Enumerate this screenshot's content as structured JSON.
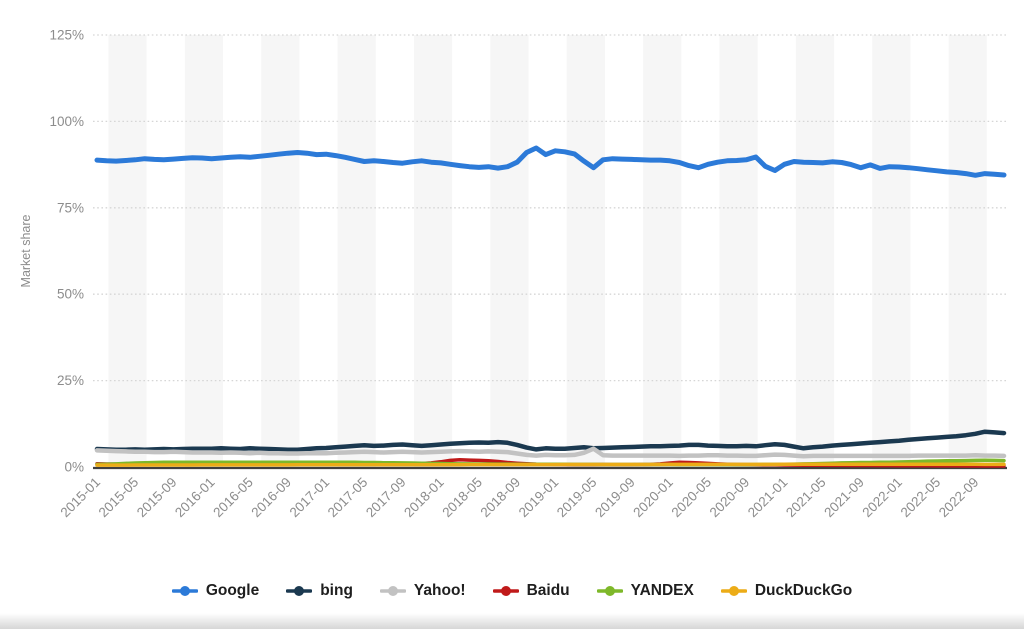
{
  "axis_text_color": "#8c8c8c",
  "legend_text_color": "#1e1e1e",
  "plot_stripe_color": "#f6f6f6",
  "gridline_color": "#d6d6d6",
  "baseline_color": "#3f3f3f",
  "chart_data": {
    "type": "line",
    "title": "",
    "xlabel": "",
    "ylabel": "Market share",
    "ylim": [
      0,
      125
    ],
    "grid": "horizontal dotted",
    "plot_bands": "alternating vertical 4-month stripes",
    "legend_position": "bottom",
    "x_interval": "monthly",
    "x_start": "2015-01",
    "x_end": "2022-12",
    "x_tick_every": 4,
    "y_ticks": {
      "values": [
        0,
        25,
        50,
        75,
        100,
        125
      ],
      "labels": [
        "0%",
        "25%",
        "50%",
        "75%",
        "100%",
        "125%"
      ]
    },
    "x_tick_labels": [
      "2015-01",
      "2015-05",
      "2015-09",
      "2016-01",
      "2016-05",
      "2016-09",
      "2017-01",
      "2017-05",
      "2017-09",
      "2018-01",
      "2018-05",
      "2018-09",
      "2019-01",
      "2019-05",
      "2019-09",
      "2020-01",
      "2020-05",
      "2020-09",
      "2021-01",
      "2021-05",
      "2021-09",
      "2022-01",
      "2022-05",
      "2022-09"
    ],
    "series": [
      {
        "name": "Google",
        "color": "#2c7ad8",
        "width": 5,
        "values": [
          88.8,
          88.6,
          88.5,
          88.7,
          88.9,
          89.2,
          89.0,
          88.9,
          89.1,
          89.3,
          89.5,
          89.4,
          89.2,
          89.4,
          89.6,
          89.8,
          89.6,
          89.9,
          90.2,
          90.5,
          90.8,
          91.0,
          90.8,
          90.4,
          90.5,
          90.1,
          89.6,
          89.0,
          88.4,
          88.6,
          88.4,
          88.1,
          87.9,
          88.3,
          88.6,
          88.2,
          88.0,
          87.6,
          87.2,
          86.9,
          86.7,
          86.9,
          86.5,
          86.9,
          88.2,
          91.0,
          92.3,
          90.4,
          91.5,
          91.2,
          90.6,
          88.5,
          86.6,
          88.9,
          89.2,
          89.1,
          89.0,
          88.9,
          88.8,
          88.8,
          88.6,
          88.1,
          87.2,
          86.6,
          87.6,
          88.2,
          88.6,
          88.7,
          88.9,
          89.7,
          87.0,
          85.8,
          87.6,
          88.4,
          88.2,
          88.1,
          88.0,
          88.3,
          88.1,
          87.5,
          86.6,
          87.4,
          86.4,
          86.9,
          86.8,
          86.6,
          86.3,
          86.0,
          85.7,
          85.4,
          85.2,
          84.9,
          84.4,
          84.9,
          84.7,
          84.5
        ]
      },
      {
        "name": "bing",
        "color": "#1b3950",
        "width": 4.5,
        "values": [
          5.2,
          5.1,
          5.0,
          5.0,
          5.1,
          5.0,
          5.1,
          5.2,
          5.1,
          5.2,
          5.3,
          5.3,
          5.3,
          5.4,
          5.3,
          5.2,
          5.4,
          5.3,
          5.2,
          5.1,
          5.0,
          5.0,
          5.2,
          5.4,
          5.5,
          5.7,
          5.9,
          6.1,
          6.3,
          6.1,
          6.2,
          6.4,
          6.5,
          6.3,
          6.1,
          6.3,
          6.5,
          6.7,
          6.9,
          7.0,
          7.1,
          7.0,
          7.2,
          7.0,
          6.4,
          5.6,
          5.1,
          5.4,
          5.3,
          5.3,
          5.5,
          5.7,
          5.4,
          5.5,
          5.6,
          5.7,
          5.8,
          5.9,
          6.0,
          6.0,
          6.1,
          6.2,
          6.4,
          6.4,
          6.2,
          6.1,
          6.0,
          6.0,
          6.1,
          6.0,
          6.3,
          6.6,
          6.4,
          5.9,
          5.4,
          5.7,
          5.9,
          6.2,
          6.4,
          6.6,
          6.8,
          7.0,
          7.2,
          7.4,
          7.6,
          7.9,
          8.1,
          8.3,
          8.5,
          8.7,
          8.9,
          9.2,
          9.6,
          10.2,
          10.0,
          9.8
        ]
      },
      {
        "name": "Yahoo!",
        "color": "#c2c2c2",
        "width": 4.5,
        "values": [
          4.8,
          4.7,
          4.6,
          4.5,
          4.4,
          4.4,
          4.3,
          4.3,
          4.4,
          4.3,
          4.2,
          4.2,
          4.2,
          4.1,
          4.2,
          4.1,
          4.0,
          4.1,
          4.0,
          4.0,
          3.9,
          3.9,
          4.0,
          4.0,
          4.0,
          4.1,
          4.2,
          4.3,
          4.4,
          4.3,
          4.2,
          4.3,
          4.4,
          4.3,
          4.2,
          4.3,
          4.4,
          4.5,
          4.6,
          4.5,
          4.4,
          4.5,
          4.4,
          4.3,
          3.9,
          3.5,
          3.3,
          3.5,
          3.4,
          3.4,
          3.5,
          4.1,
          5.3,
          3.4,
          3.3,
          3.3,
          3.3,
          3.3,
          3.3,
          3.3,
          3.3,
          3.2,
          3.3,
          3.3,
          3.4,
          3.4,
          3.3,
          3.3,
          3.2,
          3.2,
          3.4,
          3.6,
          3.5,
          3.3,
          3.1,
          3.2,
          3.2,
          3.2,
          3.2,
          3.2,
          3.2,
          3.2,
          3.2,
          3.2,
          3.2,
          3.2,
          3.3,
          3.3,
          3.3,
          3.3,
          3.3,
          3.3,
          3.4,
          3.3,
          3.3,
          3.2
        ]
      },
      {
        "name": "Baidu",
        "color": "#c01a1a",
        "width": 3.5,
        "values": [
          0.92,
          0.88,
          0.85,
          0.82,
          0.8,
          0.78,
          0.76,
          0.74,
          0.72,
          0.7,
          0.7,
          0.7,
          0.7,
          0.72,
          0.7,
          0.68,
          0.7,
          0.72,
          0.7,
          0.7,
          0.72,
          0.74,
          0.72,
          0.7,
          0.72,
          0.75,
          0.78,
          0.8,
          0.82,
          0.85,
          0.88,
          0.9,
          0.92,
          0.95,
          1.0,
          1.2,
          1.5,
          1.9,
          2.1,
          2.0,
          1.9,
          1.8,
          1.6,
          1.3,
          1.1,
          0.95,
          0.85,
          0.8,
          0.75,
          0.72,
          0.7,
          0.68,
          0.7,
          0.72,
          0.7,
          0.68,
          0.7,
          0.72,
          0.75,
          0.9,
          1.15,
          1.35,
          1.3,
          1.2,
          1.05,
          0.9,
          0.8,
          0.72,
          0.68,
          0.65,
          0.62,
          0.6,
          0.58,
          0.55,
          0.52,
          0.5,
          0.48,
          0.46,
          0.45,
          0.44,
          0.43,
          0.42,
          0.41,
          0.4,
          0.38,
          0.36,
          0.35,
          0.34,
          0.33,
          0.32,
          0.31,
          0.3,
          0.3,
          0.29,
          0.28,
          0.28
        ]
      },
      {
        "name": "YANDEX",
        "color": "#7eb82a",
        "width": 3.5,
        "values": [
          0.75,
          0.8,
          0.9,
          1.05,
          1.15,
          1.25,
          1.3,
          1.35,
          1.4,
          1.4,
          1.4,
          1.4,
          1.4,
          1.4,
          1.4,
          1.4,
          1.4,
          1.4,
          1.4,
          1.4,
          1.4,
          1.4,
          1.4,
          1.4,
          1.4,
          1.4,
          1.4,
          1.35,
          1.3,
          1.3,
          1.25,
          1.25,
          1.2,
          1.15,
          1.1,
          1.05,
          1.0,
          0.95,
          0.9,
          0.9,
          0.88,
          0.86,
          0.85,
          0.84,
          0.82,
          0.8,
          0.8,
          0.8,
          0.8,
          0.78,
          0.76,
          0.75,
          0.74,
          0.73,
          0.72,
          0.72,
          0.72,
          0.72,
          0.72,
          0.72,
          0.72,
          0.7,
          0.7,
          0.7,
          0.7,
          0.7,
          0.7,
          0.7,
          0.7,
          0.72,
          0.74,
          0.76,
          0.8,
          0.85,
          0.9,
          0.95,
          1.0,
          1.1,
          1.2,
          1.25,
          1.3,
          1.3,
          1.35,
          1.4,
          1.45,
          1.5,
          1.6,
          1.7,
          1.75,
          1.8,
          1.8,
          1.85,
          1.9,
          1.95,
          1.9,
          1.85
        ]
      },
      {
        "name": "DuckDuckGo",
        "color": "#ecac17",
        "width": 3.5,
        "values": [
          0.55,
          0.55,
          0.56,
          0.56,
          0.57,
          0.57,
          0.58,
          0.58,
          0.58,
          0.59,
          0.59,
          0.6,
          0.6,
          0.6,
          0.61,
          0.61,
          0.61,
          0.62,
          0.62,
          0.62,
          0.62,
          0.63,
          0.63,
          0.63,
          0.63,
          0.64,
          0.64,
          0.64,
          0.65,
          0.65,
          0.65,
          0.65,
          0.66,
          0.66,
          0.66,
          0.66,
          0.67,
          0.67,
          0.67,
          0.68,
          0.68,
          0.68,
          0.69,
          0.69,
          0.69,
          0.7,
          0.7,
          0.7,
          0.7,
          0.71,
          0.71,
          0.71,
          0.72,
          0.72,
          0.72,
          0.72,
          0.73,
          0.73,
          0.73,
          0.73,
          0.74,
          0.74,
          0.74,
          0.74,
          0.75,
          0.75,
          0.75,
          0.75,
          0.76,
          0.76,
          0.76,
          0.76,
          0.77,
          0.77,
          0.77,
          0.77,
          0.78,
          0.78,
          0.78,
          0.78,
          0.79,
          0.79,
          0.79,
          0.79,
          0.8,
          0.8,
          0.8,
          0.8,
          0.8,
          0.8,
          0.79,
          0.78,
          0.77,
          0.76,
          0.75,
          0.75
        ]
      }
    ]
  }
}
